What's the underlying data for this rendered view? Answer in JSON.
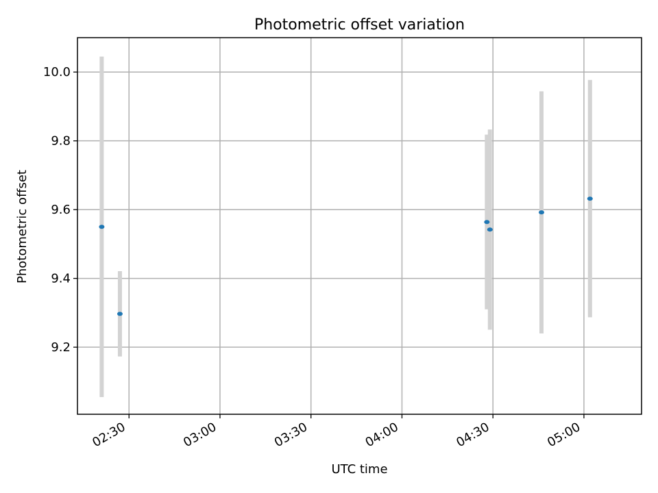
{
  "chart_data": {
    "type": "scatter",
    "title": "Photometric offset variation",
    "xlabel": "UTC time",
    "ylabel": "Photometric offset",
    "grid": true,
    "xlim": [
      "02:13",
      "05:19"
    ],
    "ylim": [
      9.005,
      10.1
    ],
    "xticks": [
      "02:30",
      "03:00",
      "03:30",
      "04:00",
      "04:30",
      "05:00"
    ],
    "yticks": [
      "9.2",
      "9.4",
      "9.6",
      "9.8",
      "10.0"
    ],
    "series": [
      {
        "marker_color": "#1f77b4",
        "errorbar_color": "#d3d3d3",
        "points": [
          {
            "x": "02:21",
            "y": 9.55,
            "ylow": 9.055,
            "yhigh": 10.045
          },
          {
            "x": "02:27",
            "y": 9.297,
            "ylow": 9.173,
            "yhigh": 9.421
          },
          {
            "x": "04:28",
            "y": 9.564,
            "ylow": 9.31,
            "yhigh": 9.818
          },
          {
            "x": "04:29",
            "y": 9.542,
            "ylow": 9.251,
            "yhigh": 9.833
          },
          {
            "x": "04:46",
            "y": 9.592,
            "ylow": 9.24,
            "yhigh": 9.944
          },
          {
            "x": "05:02",
            "y": 9.632,
            "ylow": 9.287,
            "yhigh": 9.977
          }
        ]
      }
    ]
  }
}
